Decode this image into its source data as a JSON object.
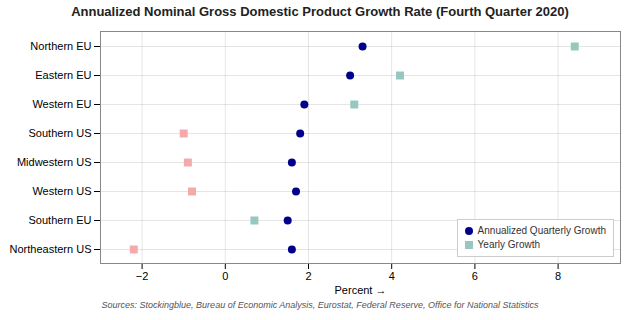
{
  "chart_data": {
    "type": "scatter",
    "title": "Annualized Nominal Gross Domestic Product Growth Rate (Fourth Quarter 2020)",
    "source": "Sources: Stockingblue, Bureau of Economic Analysis, Eurostat, Federal Reserve, Office for National Statistics",
    "xlabel": "Percent",
    "categories": [
      "Northern EU",
      "Eastern EU",
      "Western EU",
      "Southern US",
      "Midwestern US",
      "Western US",
      "Southern EU",
      "Northeastern US"
    ],
    "series": [
      {
        "name": "Annualized Quarterly Growth",
        "marker": "circle",
        "color": "#00008b",
        "values": [
          3.3,
          3.0,
          1.9,
          1.8,
          1.6,
          1.7,
          1.5,
          1.6
        ]
      },
      {
        "name": "Yearly Growth",
        "marker": "square",
        "color": "#96c8c0",
        "colors": [
          "#96c8c0",
          "#96c8c0",
          "#96c8c0",
          "#f4aaaa",
          "#f4aaaa",
          "#f4aaaa",
          "#96c8c0",
          "#f4aaaa"
        ],
        "values": [
          8.4,
          4.2,
          3.1,
          -1.0,
          -0.9,
          -0.8,
          0.7,
          -2.2
        ]
      }
    ],
    "xlim": [
      -3.0,
      9.5
    ],
    "xticks": [
      -2,
      0,
      2,
      4,
      6,
      8
    ],
    "grid": true,
    "legend": "lower right"
  }
}
